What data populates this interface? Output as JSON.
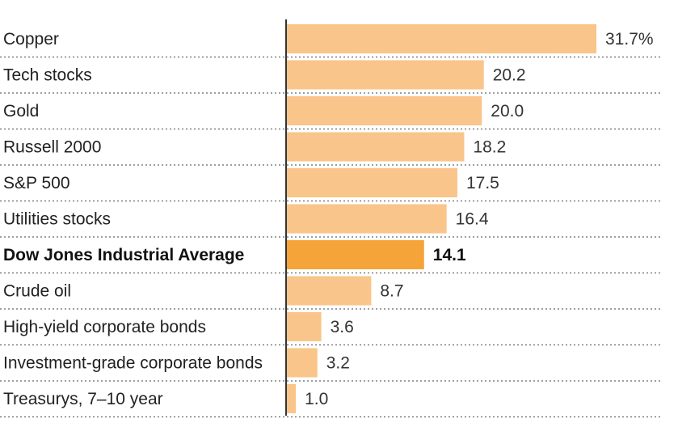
{
  "chart_data": {
    "type": "bar",
    "orientation": "horizontal",
    "categories": [
      "Copper",
      "Tech stocks",
      "Gold",
      "Russell 2000",
      "S&P 500",
      "Utilities stocks",
      "Dow Jones Industrial Average",
      "Crude oil",
      "High-yield corporate bonds",
      "Investment-grade corporate bonds",
      "Treasurys, 7–10 year"
    ],
    "values": [
      31.7,
      20.2,
      20.0,
      18.2,
      17.5,
      16.4,
      14.1,
      8.7,
      3.6,
      3.2,
      1.0
    ],
    "value_labels": [
      "31.7%",
      "20.2",
      "20.0",
      "18.2",
      "17.5",
      "16.4",
      "14.1",
      "8.7",
      "3.6",
      "3.2",
      "1.0"
    ],
    "highlight": "Dow Jones Industrial Average",
    "xlim": [
      0,
      31.7
    ],
    "grid": false,
    "colors": {
      "bar": "#f9c58a",
      "highlight_bar": "#f5a43a",
      "axis": "#333333",
      "separator": "#666666"
    }
  }
}
